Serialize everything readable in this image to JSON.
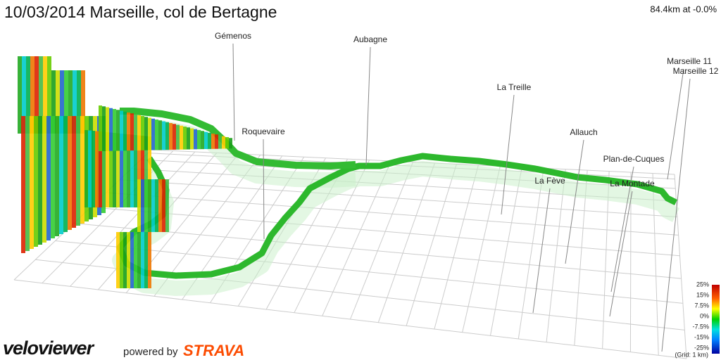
{
  "header": {
    "title": "10/03/2014 Marseille, col de Bertagne",
    "summary": "84.4km at -0.0%"
  },
  "places": [
    "Gémenos",
    "Aubagne",
    "La Treille",
    "Roquevaire",
    "Allauch",
    "Plan-de-Cuques",
    "La Fève",
    "La Montade",
    "Marseille 11",
    "Marseille 12"
  ],
  "legend": {
    "labels": [
      "25%",
      "15%",
      "7.5%",
      "0%",
      "-7.5%",
      "-15%",
      "-25%"
    ],
    "grid_note": "(Grid: 1 km)"
  },
  "footer": {
    "logo": "veloviewer",
    "powered": "powered by",
    "brand": "STRAVA"
  }
}
